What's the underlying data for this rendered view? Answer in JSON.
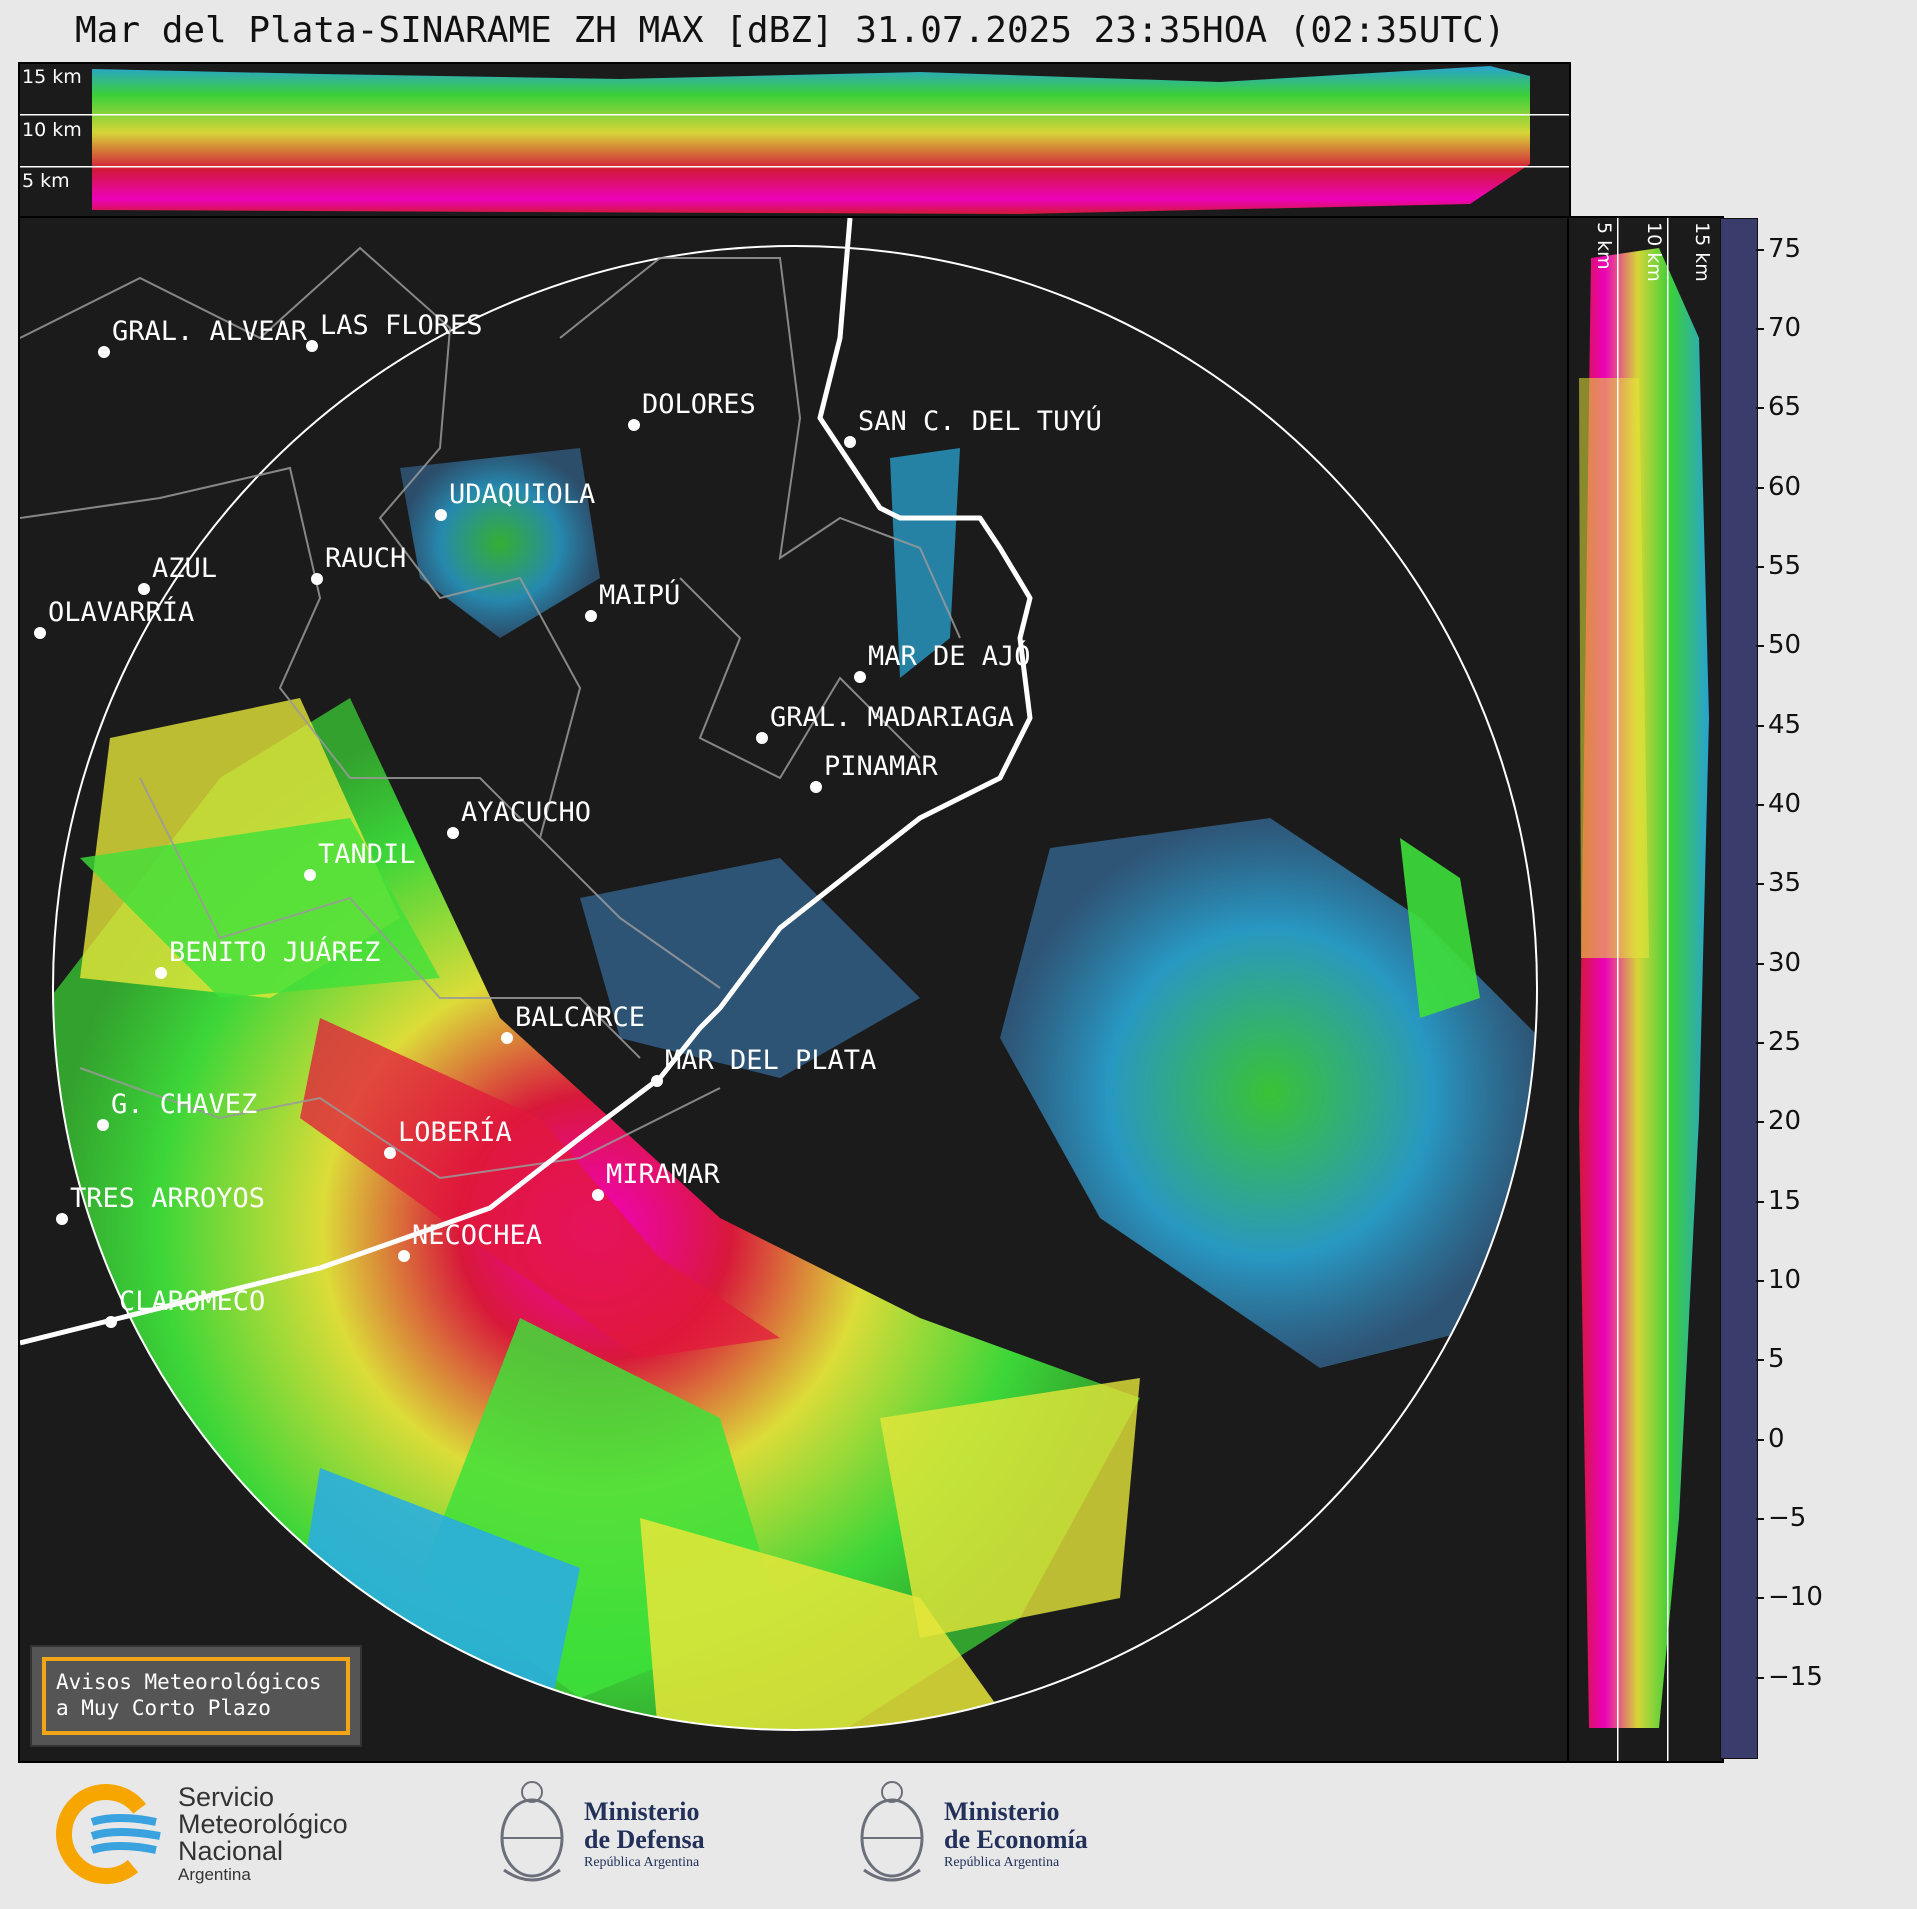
{
  "title": "Mar del Plata-SINARAME ZH MAX [dBZ] 31.07.2025 23:35HOA (02:35UTC)",
  "height_labels": [
    "15 km",
    "10 km",
    "5 km"
  ],
  "cities": [
    {
      "name": "GRAL. ALVEAR"
    },
    {
      "name": "LAS FLORES"
    },
    {
      "name": "DOLORES"
    },
    {
      "name": "SAN C. DEL TUYÚ"
    },
    {
      "name": "UDAQUIOLA"
    },
    {
      "name": "RAUCH"
    },
    {
      "name": "AZUL"
    },
    {
      "name": "OLAVARRÍA"
    },
    {
      "name": "MAIPÚ"
    },
    {
      "name": "MAR DE AJÓ"
    },
    {
      "name": "GRAL. MADARIAGA"
    },
    {
      "name": "PINAMAR"
    },
    {
      "name": "AYACUCHO"
    },
    {
      "name": "TANDIL"
    },
    {
      "name": "BENITO JUÁREZ"
    },
    {
      "name": "BALCARCE"
    },
    {
      "name": "MAR DEL PLATA"
    },
    {
      "name": "G. CHAVEZ"
    },
    {
      "name": "LOBERÍA"
    },
    {
      "name": "MIRAMAR"
    },
    {
      "name": "TRES ARROYOS"
    },
    {
      "name": "NECOCHEA"
    },
    {
      "name": "CLAROMECO"
    }
  ],
  "colorbar": {
    "unit": "dBZ",
    "ticks": [
      "75",
      "70",
      "65",
      "60",
      "55",
      "50",
      "45",
      "40",
      "35",
      "30",
      "25",
      "20",
      "15",
      "10",
      "5",
      "0",
      "−5",
      "−10",
      "−15"
    ],
    "range": [
      -20,
      77
    ],
    "stops": [
      {
        "from": -20,
        "color": "#3a3d6b"
      },
      {
        "from": -12,
        "color": "#3d4a7a"
      },
      {
        "from": -5,
        "color": "#3f5e93"
      },
      {
        "from": 3,
        "color": "#3b7cb3"
      },
      {
        "from": 10,
        "color": "#2f96cf"
      },
      {
        "from": 15,
        "color": "#2aaee0"
      },
      {
        "from": 18,
        "color": "#3ee03a"
      },
      {
        "from": 22,
        "color": "#37b831"
      },
      {
        "from": 26,
        "color": "#2a8a26"
      },
      {
        "from": 30,
        "color": "#e6e63a"
      },
      {
        "from": 34,
        "color": "#d8c53a"
      },
      {
        "from": 38,
        "color": "#e39a25"
      },
      {
        "from": 42,
        "color": "#e2183c"
      },
      {
        "from": 46,
        "color": "#c50d17"
      },
      {
        "from": 49,
        "color": "#8e0612"
      },
      {
        "from": 51,
        "color": "#d61c6e"
      },
      {
        "from": 53,
        "color": "#ff00c8"
      },
      {
        "from": 56,
        "color": "#a0009a"
      },
      {
        "from": 59,
        "color": "#ffffff"
      },
      {
        "from": 61,
        "color": "#d9f3e9"
      },
      {
        "from": 65,
        "color": "#b6e8d4"
      },
      {
        "from": 70,
        "color": "#8fdcbd"
      }
    ]
  },
  "legend_box": {
    "line1": "Avisos Meteorológicos",
    "line2": "a Muy Corto Plazo"
  },
  "logos": {
    "smn": {
      "line1": "Servicio",
      "line2": "Meteorológico",
      "line3": "Nacional",
      "line4": "Argentina"
    },
    "defensa": {
      "line1": "Ministerio",
      "line2": "de Defensa",
      "line3": "República Argentina"
    },
    "economia": {
      "line1": "Ministerio",
      "line2": "de Economía",
      "line3": "República Argentina"
    }
  }
}
